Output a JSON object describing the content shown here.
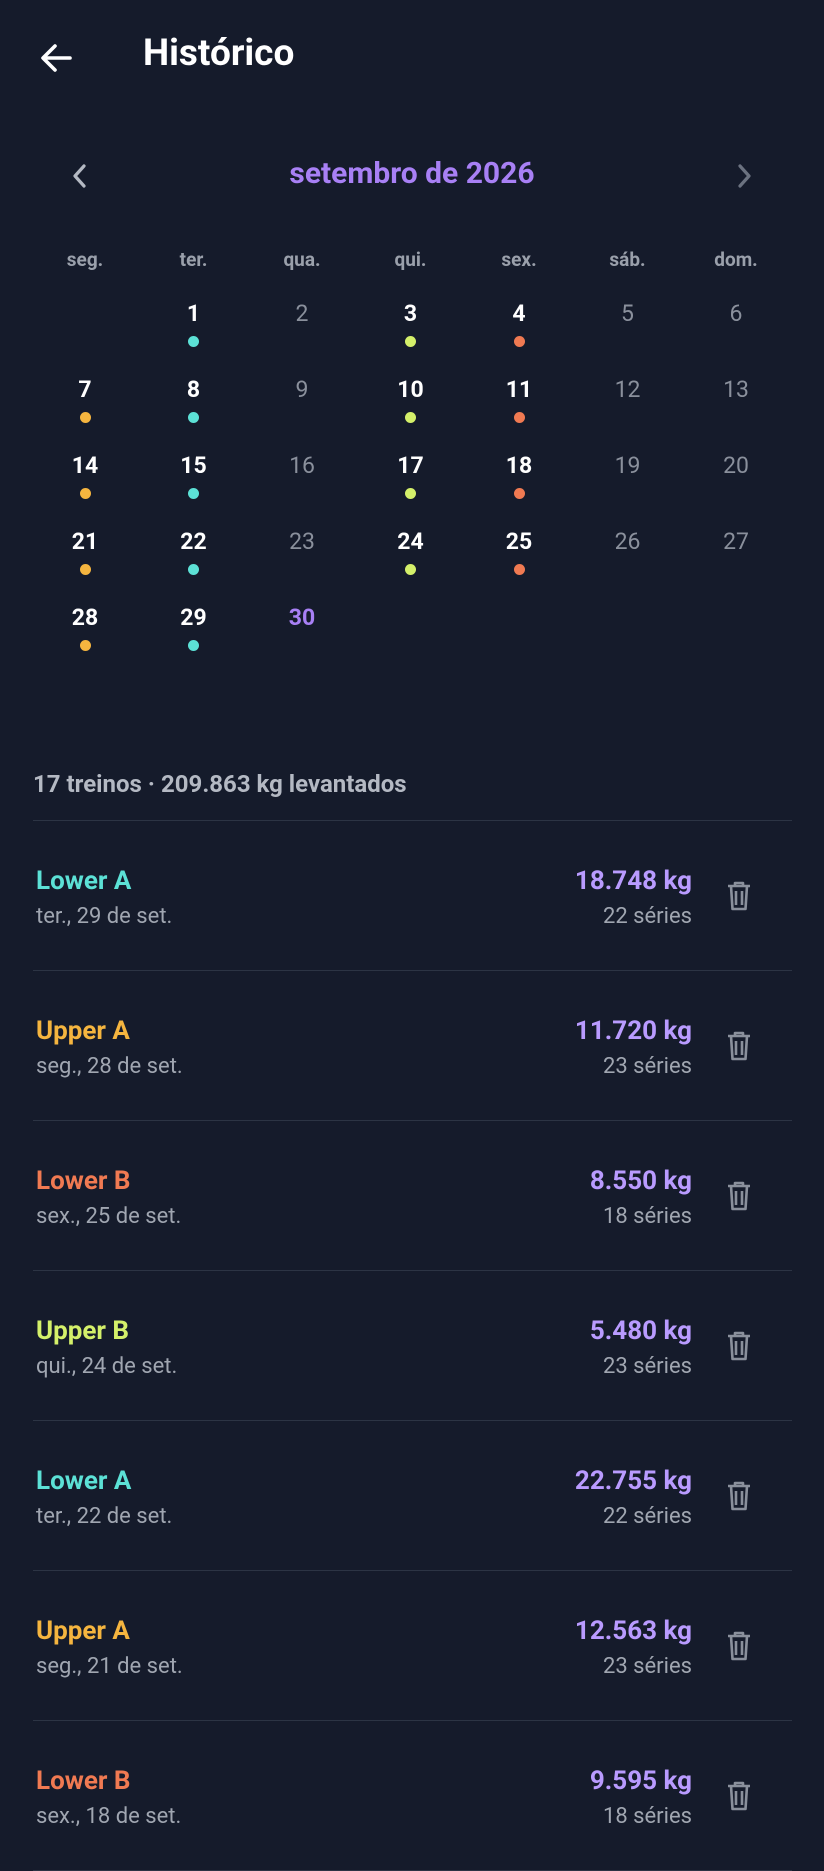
{
  "header": {
    "title": "Histórico"
  },
  "calendar": {
    "month": "setembro de 2026",
    "weekdays": [
      "seg.",
      "ter.",
      "qua.",
      "qui.",
      "sex.",
      "sáb.",
      "dom."
    ],
    "weeks": [
      [
        null,
        {
          "label": "1",
          "dot": "#5ce1d6"
        },
        {
          "label": "2"
        },
        {
          "label": "3",
          "dot": "#d4f06a"
        },
        {
          "label": "4",
          "dot": "#f07a52"
        },
        {
          "label": "5"
        },
        {
          "label": "6"
        }
      ],
      [
        {
          "label": "7",
          "dot": "#f5b53f"
        },
        {
          "label": "8",
          "dot": "#5ce1d6"
        },
        {
          "label": "9"
        },
        {
          "label": "10",
          "dot": "#d4f06a"
        },
        {
          "label": "11",
          "dot": "#f07a52"
        },
        {
          "label": "12"
        },
        {
          "label": "13"
        }
      ],
      [
        {
          "label": "14",
          "dot": "#f5b53f"
        },
        {
          "label": "15",
          "dot": "#5ce1d6"
        },
        {
          "label": "16"
        },
        {
          "label": "17",
          "dot": "#d4f06a"
        },
        {
          "label": "18",
          "dot": "#f07a52"
        },
        {
          "label": "19"
        },
        {
          "label": "20"
        }
      ],
      [
        {
          "label": "21",
          "dot": "#f5b53f"
        },
        {
          "label": "22",
          "dot": "#5ce1d6"
        },
        {
          "label": "23"
        },
        {
          "label": "24",
          "dot": "#d4f06a"
        },
        {
          "label": "25",
          "dot": "#f07a52"
        },
        {
          "label": "26"
        },
        {
          "label": "27"
        }
      ],
      [
        {
          "label": "28",
          "dot": "#f5b53f"
        },
        {
          "label": "29",
          "dot": "#5ce1d6"
        },
        {
          "label": "30",
          "today": true
        },
        null,
        null,
        null,
        null
      ]
    ]
  },
  "summary": "17 treinos · 209.863 kg levantados",
  "workouts": [
    {
      "name": "Lower A",
      "color": "#5ce1d6",
      "date": "ter., 29 de set.",
      "volume": "18.748 kg",
      "sets": "22 séries"
    },
    {
      "name": "Upper A",
      "color": "#f5b53f",
      "date": "seg., 28 de set.",
      "volume": "11.720 kg",
      "sets": "23 séries"
    },
    {
      "name": "Lower B",
      "color": "#f07a52",
      "date": "sex., 25 de set.",
      "volume": "8.550 kg",
      "sets": "18 séries"
    },
    {
      "name": "Upper B",
      "color": "#d4f06a",
      "date": "qui., 24 de set.",
      "volume": "5.480 kg",
      "sets": "23 séries"
    },
    {
      "name": "Lower A",
      "color": "#5ce1d6",
      "date": "ter., 22 de set.",
      "volume": "22.755 kg",
      "sets": "22 séries"
    },
    {
      "name": "Upper A",
      "color": "#f5b53f",
      "date": "seg., 21 de set.",
      "volume": "12.563 kg",
      "sets": "23 séries"
    },
    {
      "name": "Lower B",
      "color": "#f07a52",
      "date": "sex., 18 de set.",
      "volume": "9.595 kg",
      "sets": "18 séries"
    }
  ]
}
